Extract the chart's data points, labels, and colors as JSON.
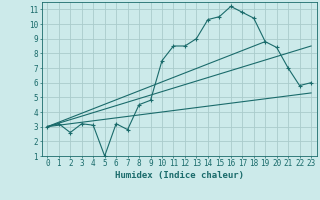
{
  "xlabel": "Humidex (Indice chaleur)",
  "bg_color": "#cceaea",
  "grid_color": "#aacccc",
  "line_color": "#1a6b6b",
  "xlim": [
    -0.5,
    23.5
  ],
  "ylim": [
    1,
    11.5
  ],
  "xticks": [
    0,
    1,
    2,
    3,
    4,
    5,
    6,
    7,
    8,
    9,
    10,
    11,
    12,
    13,
    14,
    15,
    16,
    17,
    18,
    19,
    20,
    21,
    22,
    23
  ],
  "yticks": [
    1,
    2,
    3,
    4,
    5,
    6,
    7,
    8,
    9,
    10,
    11
  ],
  "series1_x": [
    0,
    1,
    2,
    3,
    4,
    5,
    6,
    7,
    8,
    9,
    10,
    11,
    12,
    13,
    14,
    15,
    16,
    17,
    18,
    19,
    20,
    21,
    22,
    23
  ],
  "series1_y": [
    3.0,
    3.2,
    2.6,
    3.2,
    3.1,
    1.0,
    3.2,
    2.8,
    4.5,
    4.8,
    7.5,
    8.5,
    8.5,
    9.0,
    10.3,
    10.5,
    11.2,
    10.8,
    10.4,
    8.8,
    8.4,
    7.0,
    5.8,
    6.0
  ],
  "series2_x": [
    0,
    23
  ],
  "series2_y": [
    3.0,
    8.5
  ],
  "series3_x": [
    0,
    19
  ],
  "series3_y": [
    3.0,
    8.8
  ],
  "series4_x": [
    0,
    23
  ],
  "series4_y": [
    3.0,
    5.3
  ]
}
